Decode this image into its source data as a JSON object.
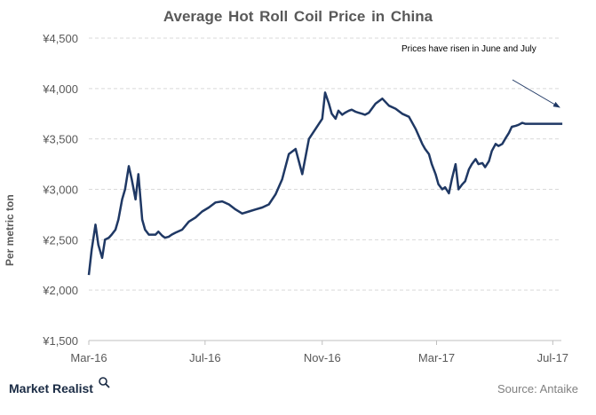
{
  "chart_data": {
    "type": "line",
    "title": "Average Hot Roll Coil Price in China",
    "ylabel": "Per metric ton",
    "xlabel": "",
    "ylim": [
      1500,
      4500
    ],
    "y_ticks": [
      1500,
      2000,
      2500,
      3000,
      3500,
      4000,
      4500
    ],
    "y_tick_labels": [
      "¥1,500",
      "¥2,000",
      "¥2,500",
      "¥3,000",
      "¥3,500",
      "¥4,000",
      "¥4,500"
    ],
    "x_tick_labels": [
      "Mar-16",
      "Jul-16",
      "Nov-16",
      "Mar-17",
      "Jul-17"
    ],
    "grid": "horizontal dashed",
    "annotation": "Prices have risen in June and July",
    "series": [
      {
        "color": "#1f3864",
        "x": [
          "2016-03-01",
          "2016-03-04",
          "2016-03-08",
          "2016-03-11",
          "2016-03-15",
          "2016-03-18",
          "2016-03-22",
          "2016-03-25",
          "2016-03-29",
          "2016-04-01",
          "2016-04-05",
          "2016-04-08",
          "2016-04-12",
          "2016-04-15",
          "2016-04-19",
          "2016-04-22",
          "2016-04-26",
          "2016-04-29",
          "2016-05-03",
          "2016-05-06",
          "2016-05-10",
          "2016-05-13",
          "2016-05-17",
          "2016-05-20",
          "2016-05-24",
          "2016-05-27",
          "2016-05-31",
          "2016-06-07",
          "2016-06-14",
          "2016-06-21",
          "2016-06-28",
          "2016-07-05",
          "2016-07-12",
          "2016-07-19",
          "2016-07-26",
          "2016-08-02",
          "2016-08-09",
          "2016-08-16",
          "2016-08-23",
          "2016-08-30",
          "2016-09-06",
          "2016-09-13",
          "2016-09-20",
          "2016-09-27",
          "2016-10-04",
          "2016-10-11",
          "2016-10-18",
          "2016-10-25",
          "2016-11-01",
          "2016-11-04",
          "2016-11-08",
          "2016-11-11",
          "2016-11-15",
          "2016-11-18",
          "2016-11-22",
          "2016-11-25",
          "2016-11-29",
          "2016-12-02",
          "2016-12-06",
          "2016-12-09",
          "2016-12-13",
          "2016-12-16",
          "2016-12-20",
          "2016-12-27",
          "2017-01-03",
          "2017-01-10",
          "2017-01-17",
          "2017-01-24",
          "2017-01-31",
          "2017-02-07",
          "2017-02-14",
          "2017-02-17",
          "2017-02-21",
          "2017-02-24",
          "2017-02-28",
          "2017-03-03",
          "2017-03-07",
          "2017-03-10",
          "2017-03-14",
          "2017-03-17",
          "2017-03-21",
          "2017-03-24",
          "2017-03-28",
          "2017-03-31",
          "2017-04-04",
          "2017-04-07",
          "2017-04-11",
          "2017-04-14",
          "2017-04-18",
          "2017-04-21",
          "2017-04-25",
          "2017-04-28",
          "2017-05-02",
          "2017-05-05",
          "2017-05-09",
          "2017-05-12",
          "2017-05-16",
          "2017-05-19",
          "2017-05-23",
          "2017-05-26",
          "2017-05-30",
          "2017-06-02",
          "2017-06-06",
          "2017-06-09",
          "2017-06-13",
          "2017-06-16",
          "2017-06-20",
          "2017-06-23",
          "2017-06-27",
          "2017-06-30",
          "2017-07-04",
          "2017-07-07",
          "2017-07-11"
        ],
        "values": [
          2150,
          2400,
          2650,
          2450,
          2320,
          2500,
          2520,
          2550,
          2600,
          2700,
          2900,
          3000,
          3230,
          3100,
          2900,
          3150,
          2700,
          2600,
          2550,
          2550,
          2550,
          2580,
          2540,
          2520,
          2530,
          2550,
          2570,
          2600,
          2680,
          2720,
          2780,
          2820,
          2870,
          2880,
          2850,
          2800,
          2760,
          2780,
          2800,
          2820,
          2850,
          2950,
          3100,
          3350,
          3400,
          3150,
          3500,
          3600,
          3700,
          3960,
          3850,
          3750,
          3700,
          3780,
          3740,
          3760,
          3780,
          3790,
          3770,
          3760,
          3750,
          3740,
          3760,
          3850,
          3900,
          3830,
          3800,
          3750,
          3720,
          3600,
          3450,
          3400,
          3350,
          3250,
          3150,
          3050,
          3000,
          3020,
          2960,
          3100,
          3250,
          3000,
          3050,
          3080,
          3200,
          3250,
          3300,
          3250,
          3260,
          3220,
          3280,
          3380,
          3450,
          3430,
          3450,
          3500,
          3560,
          3620,
          3630,
          3640,
          3660,
          3650,
          3650,
          3650,
          3650,
          3650,
          3650,
          3650,
          3650,
          3650,
          3650,
          3650,
          3650
        ]
      }
    ]
  },
  "footer": {
    "brand": "Market Realist",
    "source": "Source: Antaike"
  },
  "colors": {
    "line": "#1f3864",
    "grid": "#d9d9d9",
    "text": "#595959",
    "brand": "#1a2b44"
  }
}
